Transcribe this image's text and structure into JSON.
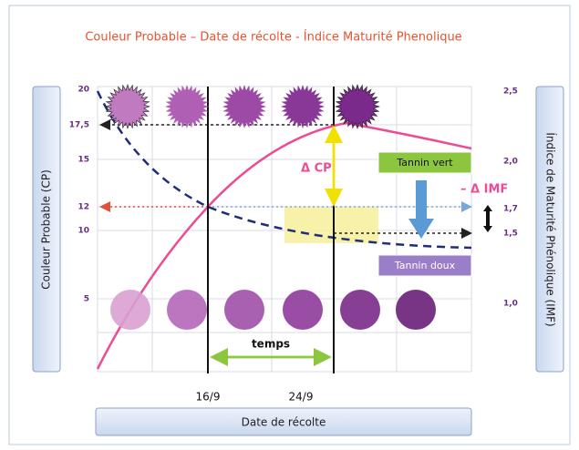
{
  "title": "Couleur Probable – Date de récolte -  Índice Maturité Phenolique",
  "left_axis": {
    "label": "Couleur Probable (CP)",
    "ticks": [
      "20",
      "17,5",
      "15",
      "12",
      "10",
      "5"
    ]
  },
  "right_axis": {
    "label": "Índice de Maturité Phénolique (IMF)",
    "ticks": [
      "2,5",
      "2,0",
      "1,7",
      "1,5",
      "1,0"
    ]
  },
  "x_axis": {
    "label": "Date de récolte",
    "ticks": [
      "16/9",
      "24/9"
    ]
  },
  "annotations": {
    "delta_cp": "Δ CP",
    "delta_imf": "– Δ IMF",
    "tannin_vert": "Tannin vert",
    "tannin_doux": "Tannin doux",
    "temps": "temps"
  }
}
